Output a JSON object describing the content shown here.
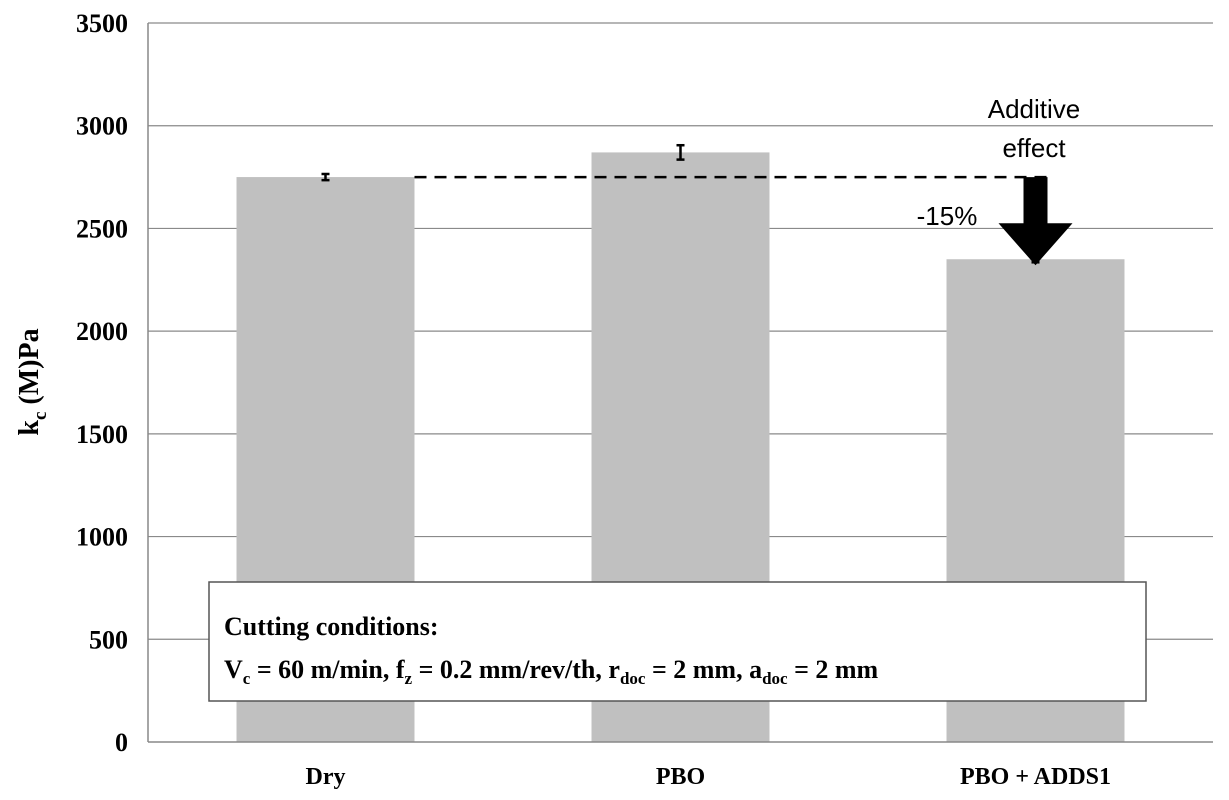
{
  "chart_data": {
    "type": "bar",
    "title": "",
    "categories": [
      "Dry",
      "PBO",
      "PBO + ADDS1"
    ],
    "values": [
      2750,
      2870,
      2350
    ],
    "error": [
      15,
      35,
      15
    ],
    "ylabel": {
      "main": "k",
      "sub": "c",
      "unit": " (M)Pa"
    },
    "ylim": [
      0,
      3500
    ],
    "yticks": [
      0,
      500,
      1000,
      1500,
      2000,
      2500,
      3000,
      3500
    ],
    "grid": true,
    "bar_color": "#c0c0c0",
    "annotations": {
      "additive_line1": "Additive",
      "additive_line2": "effect",
      "reduction": "-15%",
      "reference_value": 2750
    },
    "conditions_box": {
      "title": "Cutting conditions:",
      "parts": {
        "vc_main": "V",
        "vc_sub": "c",
        "vc_rest": " = 60 m/min, f",
        "fz_sub": "z",
        "fz_rest": " = 0.2 mm/rev/th, r",
        "rdoc_sub": "doc",
        "rdoc_rest": " = 2 mm, a",
        "adoc_sub": "doc",
        "adoc_rest": " = 2 mm"
      }
    }
  }
}
